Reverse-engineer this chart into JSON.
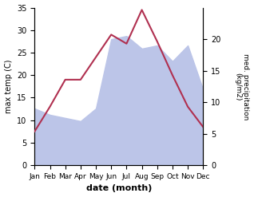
{
  "months": [
    "Jan",
    "Feb",
    "Mar",
    "Apr",
    "May",
    "Jun",
    "Jul",
    "Aug",
    "Sep",
    "Oct",
    "Nov",
    "Dec"
  ],
  "temp": [
    7.5,
    13.0,
    19.0,
    19.0,
    24.0,
    29.0,
    27.0,
    34.5,
    27.5,
    20.0,
    13.0,
    8.5
  ],
  "precip": [
    9.0,
    8.0,
    7.5,
    7.0,
    9.0,
    20.0,
    20.5,
    18.5,
    19.0,
    16.5,
    19.0,
    12.0
  ],
  "temp_color": "#b03050",
  "precip_fill_color": "#bcc5e8",
  "temp_ylim": [
    0,
    35
  ],
  "precip_ylim": [
    0,
    25
  ],
  "temp_yticks": [
    0,
    5,
    10,
    15,
    20,
    25,
    30,
    35
  ],
  "precip_yticks": [
    0,
    5,
    10,
    15,
    20
  ],
  "ylabel_left": "max temp (C)",
  "ylabel_right": "med. precipitation\n(kg/m2)",
  "xlabel": "date (month)",
  "fig_width": 3.18,
  "fig_height": 2.47,
  "dpi": 100
}
